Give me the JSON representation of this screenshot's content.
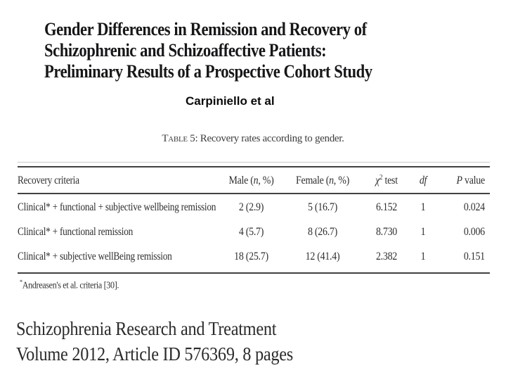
{
  "header": {
    "title": "Gender Differences in Remission and Recovery of\nSchizophrenic and Schizoaffective Patients:\nPreliminary Results of a Prospective Cohort Study",
    "author": "Carpiniello et al"
  },
  "caption": {
    "label": "Table 5:",
    "text": " Recovery rates according to gender."
  },
  "table": {
    "header": {
      "criteria": "Recovery criteria",
      "male_pre": "Male (",
      "male_n": "n",
      "male_post": ", %)",
      "female_pre": "Female (",
      "female_n": "n",
      "female_post": ", %)",
      "chi_symbol": "χ",
      "chi_sup": "2",
      "chi_rest": " test",
      "df": "df",
      "p_italic": "P",
      "p_rest": " value"
    },
    "rows": [
      {
        "criteria": "Clinical* + functional + subjective wellbeing remission",
        "male": "2 (2.9)",
        "female": "5 (16.7)",
        "chi": "6.152",
        "df": "1",
        "p": "0.024"
      },
      {
        "criteria": "Clinical* + functional remission",
        "male": "4 (5.7)",
        "female": "8 (26.7)",
        "chi": "8.730",
        "df": "1",
        "p": "0.006"
      },
      {
        "criteria": "Clinical* + subjective wellBeing remission",
        "male": "18 (25.7)",
        "female": "12 (41.4)",
        "chi": "2.382",
        "df": "1",
        "p": "0.151"
      }
    ],
    "footnote_marker": "*",
    "footnote": "Andreasen's et al. criteria [30]."
  },
  "footer": {
    "journal_name": "Schizophrenia Research and Treatment",
    "volume_line": "Volume 2012, Article ID 576369, 8 pages"
  },
  "colors": {
    "background": "#ffffff",
    "text": "#17171a",
    "rule_dark": "#414141",
    "rule_faint": "#c9c9c9"
  }
}
